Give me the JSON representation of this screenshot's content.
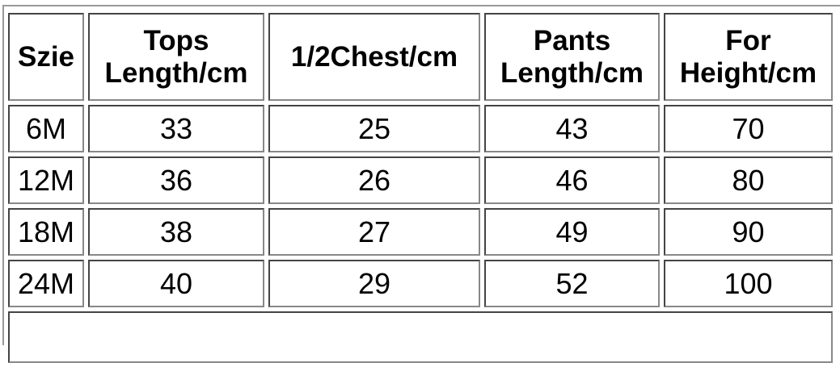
{
  "table": {
    "headers": [
      "Szie",
      "Tops Length/cm",
      "1/2Chest/cm",
      "Pants Length/cm",
      "For Height/cm"
    ],
    "rows": [
      [
        "6M",
        "33",
        "25",
        "43",
        "70"
      ],
      [
        "12M",
        "36",
        "26",
        "46",
        "80"
      ],
      [
        "18M",
        "38",
        "27",
        "49",
        "90"
      ],
      [
        "24M",
        "40",
        "29",
        "52",
        "100"
      ]
    ]
  },
  "colors": {
    "border": "#444444",
    "text": "#000000"
  }
}
